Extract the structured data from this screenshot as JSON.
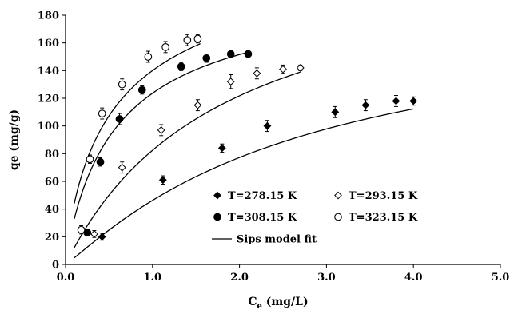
{
  "chart_data": {
    "type": "scatter",
    "xlabel": {
      "main": "C",
      "sub": "e",
      "unit": " (mg/L)"
    },
    "ylabel": "qe (mg/g)",
    "xlim": [
      0,
      5
    ],
    "ylim": [
      0,
      180
    ],
    "xticks": [
      "0.0",
      "1.0",
      "2.0",
      "3.0",
      "4.0",
      "5.0"
    ],
    "yticks": [
      "0",
      "20",
      "40",
      "60",
      "80",
      "100",
      "120",
      "140",
      "160",
      "180"
    ],
    "grid": false,
    "legend_position": "lower-right",
    "series": [
      {
        "name": "T=278.15 K",
        "marker": "diamond-filled",
        "points": [
          [
            0.42,
            20,
            2.5
          ],
          [
            1.12,
            61,
            3
          ],
          [
            1.8,
            84,
            3
          ],
          [
            2.32,
            100,
            4
          ],
          [
            3.1,
            110,
            4
          ],
          [
            3.45,
            115,
            4
          ],
          [
            3.8,
            118,
            4
          ],
          [
            4.0,
            118,
            3
          ]
        ]
      },
      {
        "name": "T=293.15 K",
        "marker": "diamond-open",
        "points": [
          [
            0.33,
            22,
            2.5
          ],
          [
            0.65,
            70,
            4
          ],
          [
            1.1,
            97,
            4
          ],
          [
            1.52,
            115,
            4
          ],
          [
            1.9,
            132,
            5
          ],
          [
            2.2,
            138,
            4
          ],
          [
            2.5,
            141,
            3
          ],
          [
            2.7,
            142,
            2
          ]
        ]
      },
      {
        "name": "T=308.15 K",
        "marker": "circle-filled",
        "points": [
          [
            0.25,
            23,
            2.5
          ],
          [
            0.4,
            74,
            3
          ],
          [
            0.62,
            105,
            4
          ],
          [
            0.88,
            126,
            3
          ],
          [
            1.33,
            143,
            3
          ],
          [
            1.62,
            149,
            3
          ],
          [
            1.9,
            152,
            2
          ],
          [
            2.1,
            152,
            2
          ]
        ]
      },
      {
        "name": "T=323.15 K",
        "marker": "circle-open",
        "points": [
          [
            0.18,
            25,
            3
          ],
          [
            0.28,
            76,
            3
          ],
          [
            0.42,
            109,
            4
          ],
          [
            0.65,
            130,
            4
          ],
          [
            0.95,
            150,
            4
          ],
          [
            1.15,
            157,
            4
          ],
          [
            1.4,
            162,
            4
          ],
          [
            1.52,
            163,
            3
          ]
        ]
      }
    ],
    "fit_curves": {
      "name": "Sips model fit",
      "curves": [
        {
          "x_range": [
            0.1,
            4.0
          ],
          "qmax": 186.2,
          "K": 0.3657,
          "n": 1.1
        },
        {
          "x_range": [
            0.1,
            2.7
          ],
          "qmax": 232.9,
          "K": 0.5478,
          "n": 1.0
        },
        {
          "x_range": [
            0.1,
            2.1
          ],
          "qmax": 205.2,
          "K": 1.5869,
          "n": 0.9
        },
        {
          "x_range": [
            0.1,
            1.55
          ],
          "qmax": 237.8,
          "K": 1.5667,
          "n": 0.8
        }
      ]
    }
  }
}
